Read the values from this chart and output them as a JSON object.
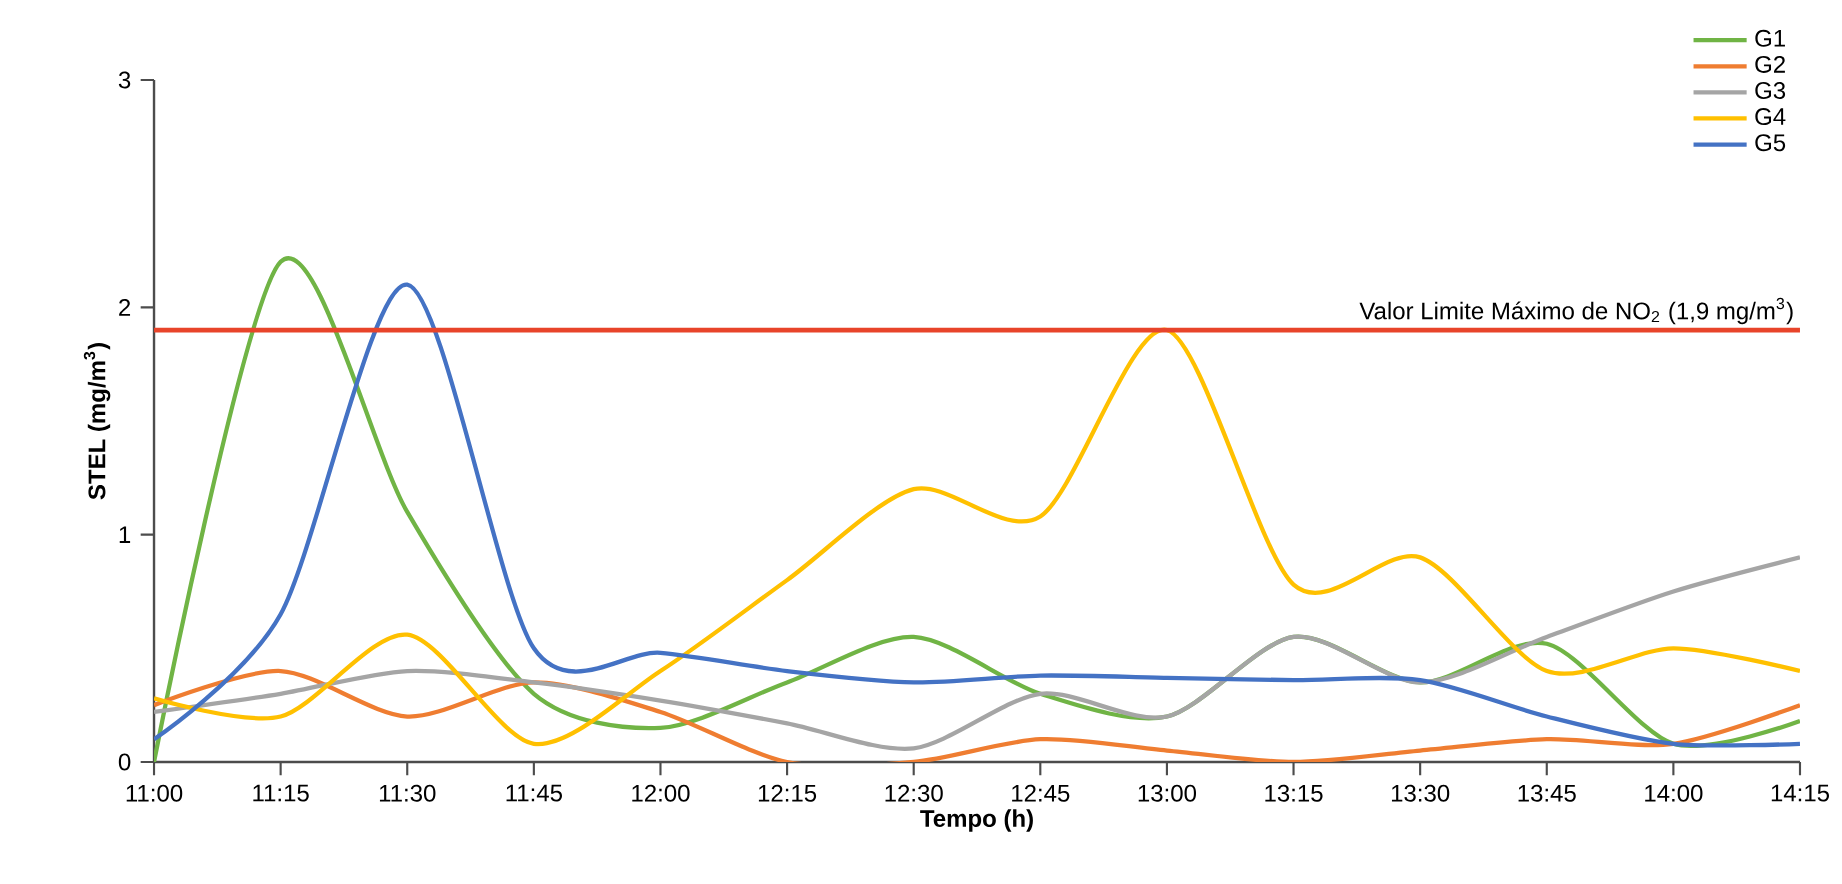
{
  "chart_data": {
    "type": "line",
    "xlabel": "Tempo (h)",
    "ylabel": "STEL (mg/m$^{3}$)",
    "x": [
      11,
      11.25,
      11.5,
      11.75,
      12,
      12.25,
      12.5,
      12.75,
      13,
      13.25,
      13.5,
      13.75,
      14,
      14.25
    ],
    "xlim": [
      11,
      14.25
    ],
    "xticks": [
      {
        "value": 11,
        "label": "11:00"
      },
      {
        "value": 11.25,
        "label": "11:15"
      },
      {
        "value": 11.5,
        "label": "11:30"
      },
      {
        "value": 11.75,
        "label": "11:45"
      },
      {
        "value": 12,
        "label": "12:00"
      },
      {
        "value": 12.25,
        "label": "12:15"
      },
      {
        "value": 12.5,
        "label": "12:30"
      },
      {
        "value": 12.75,
        "label": "12:45"
      },
      {
        "value": 13,
        "label": "13:00"
      },
      {
        "value": 13.25,
        "label": "13:15"
      },
      {
        "value": 13.5,
        "label": "13:30"
      },
      {
        "value": 13.75,
        "label": "13:45"
      },
      {
        "value": 14,
        "label": "14:00"
      },
      {
        "value": 14.25,
        "label": "14:15"
      }
    ],
    "ylim": [
      0,
      3
    ],
    "yticks": [
      0,
      1,
      2,
      3
    ],
    "series": [
      {
        "name": "G1",
        "color": "#70b445",
        "values": [
          0,
          2.2,
          1.1,
          0.3,
          0.15,
          0.35,
          0.55,
          0.3,
          0.2,
          0.55,
          0.35,
          0.52,
          0.08,
          0.18
        ]
      },
      {
        "name": "G2",
        "color": "#ef7d31",
        "values": [
          0.25,
          0.4,
          0.2,
          0.35,
          0.22,
          0,
          0,
          0.1,
          0.05,
          0,
          0.05,
          0.1,
          0.08,
          0.25
        ]
      },
      {
        "name": "G3",
        "color": "#a5a5a5",
        "values": [
          0.22,
          0.3,
          0.4,
          0.35,
          0.27,
          0.17,
          0.06,
          0.3,
          0.2,
          0.55,
          0.35,
          0.55,
          0.75,
          0.9
        ]
      },
      {
        "name": "G4",
        "color": "#ffc000",
        "values": [
          0.28,
          0.2,
          0.56,
          0.08,
          0.4,
          0.8,
          1.2,
          1.08,
          1.9,
          0.78,
          0.9,
          0.4,
          0.5,
          0.4
        ]
      },
      {
        "name": "G5",
        "color": "#4472c4",
        "values": [
          0.1,
          0.65,
          2.1,
          0.5,
          0.48,
          0.4,
          0.35,
          0.38,
          0.37,
          0.36,
          0.36,
          0.2,
          0.08,
          0.08
        ]
      }
    ],
    "ref_lines": [
      {
        "axis": "y",
        "value": 1.9,
        "label": "Valor Limite Máximo de NO$_{2}$ (1,9 mg/m$^{3}$)",
        "color": "#e8442a"
      }
    ],
    "legend": "top right",
    "grid": false,
    "marker": "none",
    "line_style": "solid"
  }
}
